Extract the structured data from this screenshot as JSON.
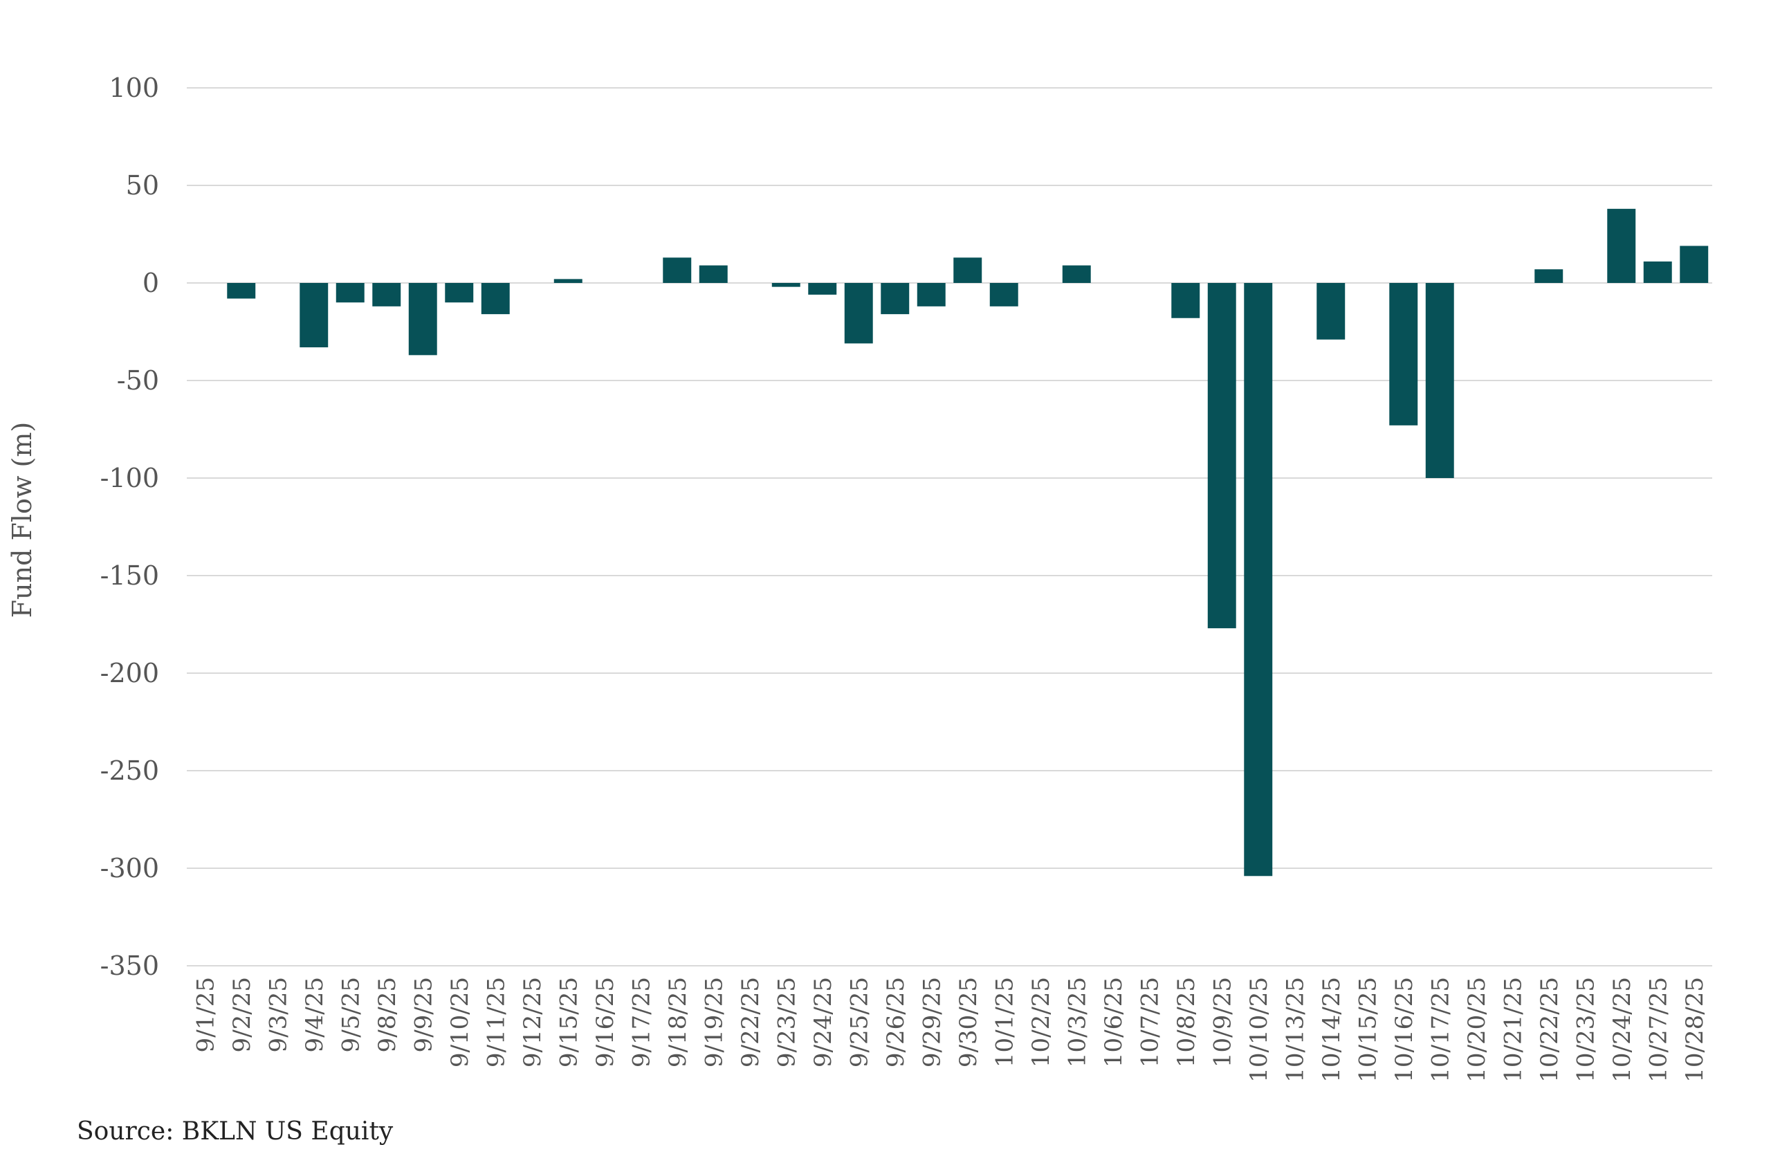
{
  "chart_data": {
    "type": "bar",
    "title": "",
    "xlabel": "",
    "ylabel": "Fund Flow (m)",
    "ylim": [
      -350,
      100
    ],
    "yticks": [
      100,
      50,
      0,
      -50,
      -100,
      -150,
      -200,
      -250,
      -300,
      -350
    ],
    "ytick_labels": [
      "100",
      "50",
      "0",
      "-50",
      "-100",
      "-150",
      "-200",
      "-250",
      "-300",
      "-350"
    ],
    "grid": true,
    "legend": "none",
    "categories": [
      "9/1/25",
      "9/2/25",
      "9/3/25",
      "9/4/25",
      "9/5/25",
      "9/8/25",
      "9/9/25",
      "9/10/25",
      "9/11/25",
      "9/12/25",
      "9/15/25",
      "9/16/25",
      "9/17/25",
      "9/18/25",
      "9/19/25",
      "9/22/25",
      "9/23/25",
      "9/24/25",
      "9/25/25",
      "9/26/25",
      "9/29/25",
      "9/30/25",
      "10/1/25",
      "10/2/25",
      "10/3/25",
      "10/6/25",
      "10/7/25",
      "10/8/25",
      "10/9/25",
      "10/10/25",
      "10/13/25",
      "10/14/25",
      "10/15/25",
      "10/16/25",
      "10/17/25",
      "10/20/25",
      "10/21/25",
      "10/22/25",
      "10/23/25",
      "10/24/25",
      "10/27/25",
      "10/28/25"
    ],
    "values": [
      0,
      -8,
      0,
      -33,
      -10,
      -12,
      -37,
      -10,
      -16,
      0,
      2,
      0,
      0,
      13,
      9,
      0,
      -2,
      -6,
      -31,
      -16,
      -12,
      13,
      -12,
      0,
      9,
      0,
      0,
      -18,
      -177,
      -304,
      0,
      -29,
      0,
      -73,
      -100,
      0,
      0,
      7,
      0,
      38,
      11,
      19
    ],
    "bar_color": "#075157",
    "grid_color": "#d9d9d9"
  },
  "source": {
    "text": "Source: BKLN US Equity"
  }
}
